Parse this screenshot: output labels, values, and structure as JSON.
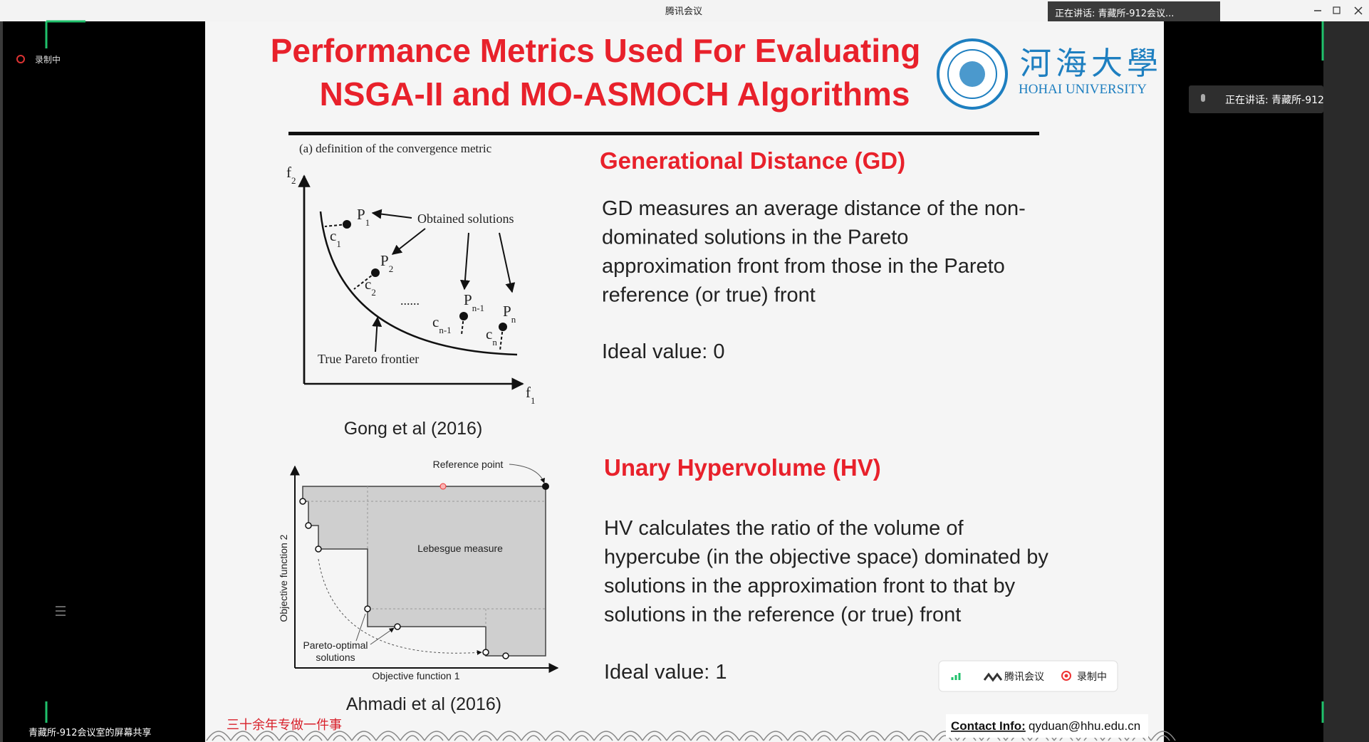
{
  "window": {
    "title": "腾讯会议",
    "speaker_top": "正在讲话: 青藏所-912会议...",
    "speaker_side": "正在讲话: 青藏所-912",
    "recording": "录制中",
    "share_label": "青藏所-912会议室的屏幕共享"
  },
  "slide": {
    "title_lines": [
      "Performance Metrics Used For Evaluating",
      "NSGA-II and MO-ASMOCH Algorithms"
    ],
    "logo_cn": "河海大學",
    "logo_en": "HOHAI UNIVERSITY",
    "gd": {
      "heading": "Generational Distance (GD)",
      "body": [
        "GD measures an average distance of the non-",
        "dominated solutions in the Pareto",
        "approximation front from those in the Pareto",
        "reference (or true) front"
      ],
      "ideal": "Ideal value: 0"
    },
    "hv": {
      "heading": "Unary Hypervolume (HV)",
      "body": [
        "HV calculates the ratio of the volume of",
        "hypercube (in the objective space) dominated by",
        "solutions in the approximation front to that by",
        "solutions in the reference (or true) front"
      ],
      "ideal": "Ideal value: 1"
    },
    "fig1": {
      "caption": "(a) definition of the convergence metric",
      "obtained": "Obtained solutions",
      "true_front": "True Pareto frontier",
      "dots": "......",
      "labels": [
        {
          "text": "f",
          "sub": "2"
        },
        {
          "text": "f",
          "sub": "1"
        },
        {
          "text": "P",
          "sub": "1"
        },
        {
          "text": "c",
          "sub": "1"
        },
        {
          "text": "P",
          "sub": "2"
        },
        {
          "text": "c",
          "sub": "2"
        },
        {
          "text": "P",
          "sub": "n-1"
        },
        {
          "text": "c",
          "sub": "n-1"
        },
        {
          "text": "P",
          "sub": "n"
        },
        {
          "text": "c",
          "sub": "n"
        }
      ],
      "citation": "Gong et al (2016)"
    },
    "fig2": {
      "reference": "Reference point",
      "lebesgue": "Lebesgue measure",
      "pareto": [
        "Pareto-optimal",
        "solutions"
      ],
      "xlabel": "Objective function 1",
      "ylabel": "Objective function 2",
      "citation": "Ahmadi et al (2016)"
    },
    "footer": {
      "slogan": "三十余年专做一件事",
      "contact_label": "Contact Info:",
      "contact": "qyduan@hhu.edu.cn"
    }
  },
  "toolbar": {
    "app": "腾讯会议",
    "recording": "录制中"
  }
}
